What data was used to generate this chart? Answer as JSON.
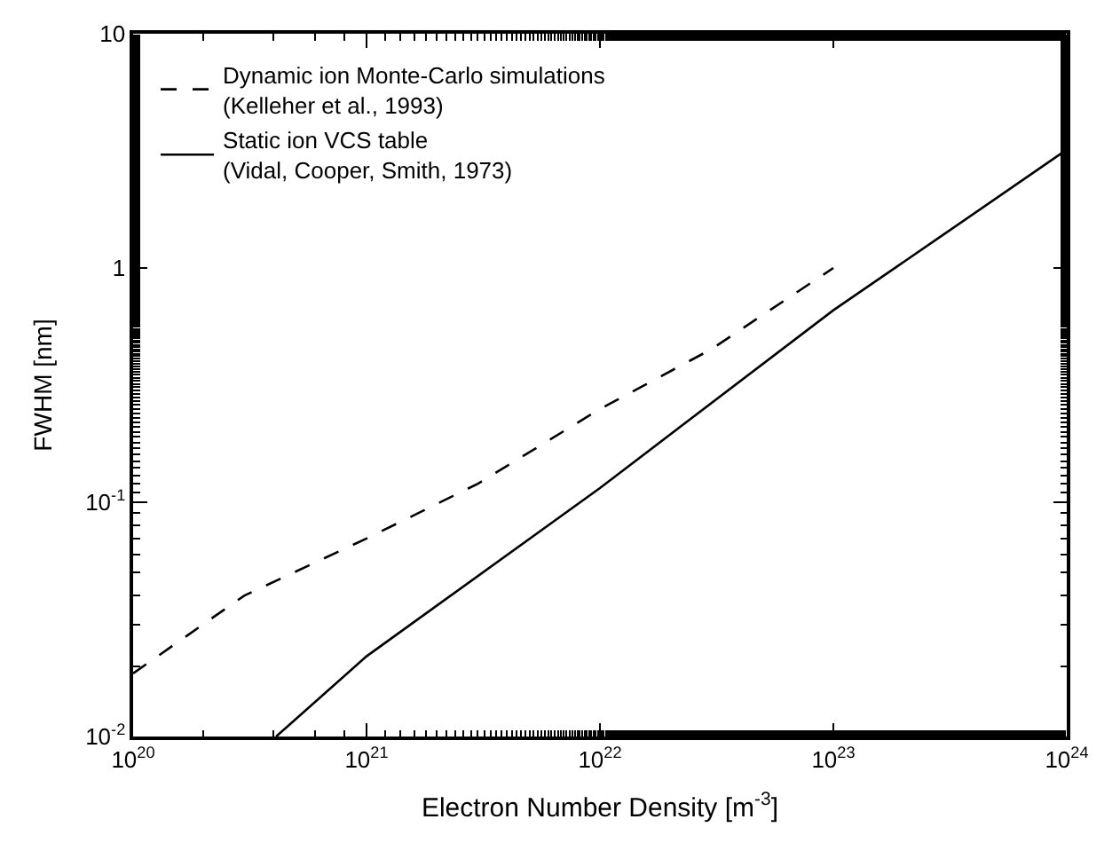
{
  "chart_data": {
    "type": "line",
    "xlabel": "Electron Number Density [m$^{-3}$]",
    "ylabel": "FWHM [nm]",
    "log": "xy",
    "legend": "top left",
    "xlim": [
      1e+20,
      1e+24
    ],
    "ylim": [
      0.01,
      10
    ],
    "xticks": [
      {
        "value": 1e+20,
        "label": "10$^{20}$"
      },
      {
        "value": 1e+21,
        "label": "10$^{21}$"
      },
      {
        "value": 1e+22,
        "label": "10$^{22}$"
      },
      {
        "value": 1e+23,
        "label": "10$^{23}$"
      },
      {
        "value": 1e+24,
        "label": "10$^{24}$"
      }
    ],
    "yticks": [
      {
        "value": 0.01,
        "label": "10$^{-2}$"
      },
      {
        "value": 0.1,
        "label": "10$^{-1}$"
      },
      1,
      10
    ],
    "series": [
      {
        "name": "Dynamic ion Monte-Carlo simulations\n(Kelleher et al., 1993)",
        "color": "#000000",
        "line_style": "dashed",
        "x": [
          1e+20,
          3e+20,
          1e+21,
          3e+21,
          1e+22,
          3e+22,
          1e+23
        ],
        "values": [
          0.0186,
          0.04,
          0.07,
          0.12,
          0.25,
          0.45,
          1.0
        ]
      },
      {
        "name": "Static ion VCS table\n(Vidal, Cooper, Smith, 1973)",
        "color": "#000000",
        "line_style": "solid",
        "x": [
          4.1e+20,
          1e+21,
          1e+22,
          1e+23,
          3e+23,
          1e+24
        ],
        "values": [
          0.01,
          0.022,
          0.115,
          0.66,
          1.4,
          3.2
        ]
      }
    ]
  }
}
